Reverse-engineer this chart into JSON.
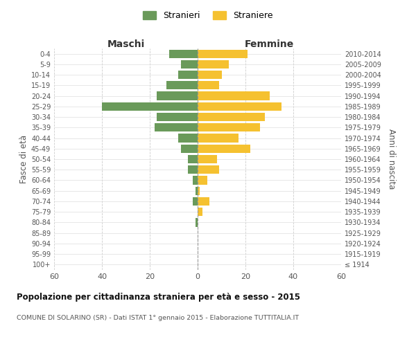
{
  "age_groups": [
    "100+",
    "95-99",
    "90-94",
    "85-89",
    "80-84",
    "75-79",
    "70-74",
    "65-69",
    "60-64",
    "55-59",
    "50-54",
    "45-49",
    "40-44",
    "35-39",
    "30-34",
    "25-29",
    "20-24",
    "15-19",
    "10-14",
    "5-9",
    "0-4"
  ],
  "birth_years": [
    "≤ 1914",
    "1915-1919",
    "1920-1924",
    "1925-1929",
    "1930-1934",
    "1935-1939",
    "1940-1944",
    "1945-1949",
    "1950-1954",
    "1955-1959",
    "1960-1964",
    "1965-1969",
    "1970-1974",
    "1975-1979",
    "1980-1984",
    "1985-1989",
    "1990-1994",
    "1995-1999",
    "2000-2004",
    "2005-2009",
    "2010-2014"
  ],
  "males": [
    0,
    0,
    0,
    0,
    1,
    0,
    2,
    1,
    2,
    4,
    4,
    7,
    8,
    18,
    17,
    40,
    17,
    13,
    8,
    7,
    12
  ],
  "females": [
    0,
    0,
    0,
    0,
    0,
    2,
    5,
    1,
    4,
    9,
    8,
    22,
    17,
    26,
    28,
    35,
    30,
    9,
    10,
    13,
    21
  ],
  "male_color": "#6a9a5a",
  "female_color": "#f5c130",
  "male_label": "Stranieri",
  "female_label": "Straniere",
  "title": "Popolazione per cittadinanza straniera per età e sesso - 2015",
  "subtitle": "COMUNE DI SOLARINO (SR) - Dati ISTAT 1° gennaio 2015 - Elaborazione TUTTITALIA.IT",
  "header_left": "Maschi",
  "header_right": "Femmine",
  "ylabel_left": "Fasce di età",
  "ylabel_right": "Anni di nascita",
  "xlim": 60,
  "bar_height": 0.8
}
